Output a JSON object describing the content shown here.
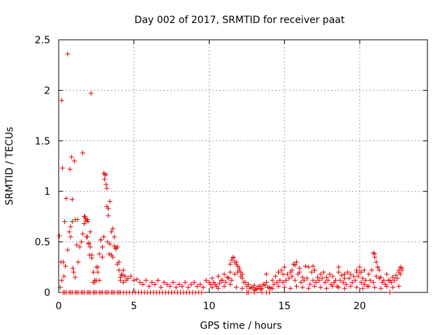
{
  "chart_data": {
    "type": "scatter",
    "title": "Day 002 of 2017, SRMTID for receiver paat",
    "xlabel": "GPS time / hours",
    "ylabel": "SRMTID / TECUs",
    "xlim": [
      0,
      24.5
    ],
    "ylim": [
      0,
      2.5
    ],
    "xticks": [
      0,
      5,
      10,
      15,
      20
    ],
    "yticks": [
      0,
      0.5,
      1,
      1.5,
      2,
      2.5
    ],
    "xtick_labels": [
      "0",
      "5",
      "10",
      "15",
      "20"
    ],
    "ytick_labels": [
      "0",
      "0.5",
      "1",
      "1.5",
      "2",
      "2.5"
    ],
    "grid": true,
    "marker": "+",
    "series": [
      {
        "name": "SRMTID",
        "color": "#e00000",
        "x": [
          0.1,
          0.2,
          0.3,
          0.4,
          0.5,
          0.6,
          0.7,
          0.8,
          0.9,
          1.0,
          1.1,
          1.2,
          1.3,
          1.4,
          1.5,
          1.6,
          1.7,
          1.8,
          1.9,
          2.0,
          2.1,
          2.2,
          2.3,
          2.4,
          2.5,
          2.6,
          2.7,
          2.8,
          2.9,
          3.0,
          3.1,
          3.2,
          3.3,
          3.4,
          3.5,
          3.6,
          3.7,
          3.8,
          3.9,
          4.0,
          4.1,
          4.2,
          4.3,
          4.4,
          4.5,
          0.05,
          0.15,
          0.2,
          0.25,
          0.35,
          0.45,
          0.6,
          0.75,
          0.8,
          0.85,
          0.9,
          0.95,
          1.05,
          1.1,
          1.25,
          1.6,
          1.7,
          1.75,
          1.8,
          1.85,
          1.9,
          1.95,
          2.0,
          2.05,
          2.1,
          2.15,
          2.2,
          2.3,
          2.4,
          2.5,
          2.6,
          2.7,
          2.8,
          2.9,
          3.0,
          3.05,
          3.1,
          3.15,
          3.2,
          3.25,
          3.3,
          3.35,
          3.4,
          3.5,
          3.6,
          3.7,
          3.8,
          3.9,
          4.0,
          4.1,
          4.2,
          4.3,
          0.3,
          0.5,
          0.7,
          0.9,
          1.1,
          1.3,
          1.5,
          1.7,
          1.9,
          2.1,
          2.3,
          2.5,
          2.7,
          2.9,
          3.1,
          3.3,
          3.5,
          3.7,
          3.9,
          4.1,
          4.3,
          4.5,
          4.7,
          4.9,
          5.1,
          5.3,
          5.5,
          5.7,
          5.9,
          6.1,
          6.3,
          6.5,
          6.7,
          6.9,
          7.1,
          7.3,
          7.5,
          7.7,
          7.9,
          8.1,
          8.3,
          8.5,
          8.7,
          8.9,
          9.1,
          9.3,
          9.5,
          4.6,
          4.8,
          5.0,
          5.2,
          5.4,
          5.6,
          5.8,
          6.0,
          6.2,
          6.4,
          6.6,
          6.8,
          7.0,
          7.2,
          7.4,
          7.6,
          7.8,
          8.0,
          8.2,
          8.4,
          8.6,
          8.8,
          9.0,
          9.2,
          9.4,
          9.6,
          9.8,
          10.0,
          10.2,
          10.4,
          10.6,
          10.8,
          11.0,
          11.2,
          11.4,
          11.6,
          11.8,
          12.0,
          12.2,
          12.4,
          12.6,
          12.8,
          13.0,
          13.2,
          13.4,
          13.6,
          13.8,
          14.0,
          14.2,
          14.4,
          14.6,
          14.8,
          15.0,
          15.2,
          15.4,
          15.6,
          15.8,
          16.0,
          16.2,
          16.4,
          16.6,
          16.8,
          17.0,
          17.2,
          17.4,
          17.6,
          17.8,
          18.0,
          18.2,
          18.4,
          18.6,
          18.8,
          19.0,
          19.2,
          19.4,
          19.6,
          19.8,
          20.0,
          20.2,
          20.4,
          20.6,
          20.8,
          21.0,
          21.2,
          21.4,
          21.6,
          21.8,
          22.0,
          22.2,
          22.4,
          22.6,
          22.8,
          10.1,
          10.3,
          10.5,
          10.7,
          10.9,
          11.1,
          11.3,
          11.5,
          11.7,
          11.9,
          12.1,
          12.3,
          12.5,
          12.7,
          12.9,
          13.1,
          13.3,
          13.5,
          13.7,
          13.9,
          14.1,
          14.3,
          14.5,
          14.7,
          14.9,
          15.1,
          15.3,
          15.5,
          15.7,
          15.9,
          16.1,
          16.3,
          16.5,
          16.7,
          16.9,
          17.1,
          17.3,
          17.5,
          17.7,
          17.9,
          18.1,
          18.3,
          18.5,
          18.7,
          18.9,
          19.1,
          19.3,
          19.5,
          19.7,
          19.9,
          20.1,
          20.3,
          20.5,
          20.7,
          20.9,
          21.1,
          21.3,
          21.5,
          21.7,
          21.9,
          22.1,
          22.3,
          22.5,
          22.7,
          11.5,
          11.6,
          11.7,
          11.8,
          11.9,
          12.0,
          12.1,
          15.7,
          15.8,
          16.0,
          16.9,
          17.0,
          18.6,
          20.0,
          20.3,
          20.9,
          21.0,
          21.1,
          21.2,
          22.7,
          22.8,
          11.4,
          12.2,
          13.8,
          14.6,
          14.9,
          15.5,
          19.0,
          19.8,
          20.1,
          21.3,
          22.6,
          10.2,
          10.6,
          11.0,
          11.4,
          11.8,
          12.2,
          12.6,
          13.0,
          13.4,
          13.8,
          14.2,
          14.6,
          15.0,
          15.4,
          15.8,
          16.2,
          16.6,
          17.0,
          17.4,
          17.8,
          18.2,
          18.6,
          19.0,
          19.4,
          19.8,
          20.2,
          20.6,
          21.0,
          21.4,
          21.8,
          22.2,
          22.6,
          0.4,
          0.8,
          1.2,
          1.6,
          2.0,
          2.4,
          2.8,
          3.2,
          3.6,
          4.0,
          5.5,
          6.5,
          7.5,
          8.5,
          12.5,
          13.0,
          13.5,
          14.0,
          22.0
        ],
        "y": [
          0.05,
          0.12,
          0.3,
          0.7,
          0.93,
          0.42,
          0.6,
          0.55,
          0.7,
          0.2,
          0.72,
          0.47,
          0.3,
          0.45,
          0.5,
          0.58,
          0.75,
          0.73,
          0.55,
          0.49,
          0.6,
          0.37,
          0.2,
          0.1,
          0.12,
          0.25,
          0.38,
          0.52,
          0.35,
          0.55,
          1.17,
          1.03,
          0.83,
          0.48,
          0.37,
          0.63,
          0.55,
          0.44,
          0.45,
          0.3,
          0.15,
          0.17,
          0.22,
          0.16,
          0.12,
          0.56,
          0.3,
          1.9,
          1.23,
          0.16,
          0.26,
          2.36,
          1.22,
          0.65,
          1.34,
          0.92,
          0.24,
          1.3,
          0.15,
          0.72,
          1.38,
          0.68,
          0.75,
          0.71,
          0.55,
          0.72,
          0.7,
          0.48,
          0.37,
          0.45,
          1.97,
          0.34,
          0.1,
          0.12,
          0.25,
          0.2,
          0.12,
          0.52,
          0.45,
          1.18,
          1.12,
          1.16,
          1.07,
          0.85,
          0.5,
          0.76,
          0.38,
          0.9,
          0.6,
          0.35,
          0.46,
          0.43,
          0.28,
          0.22,
          0.12,
          0.18,
          0.1,
          0.0,
          0.0,
          0.0,
          0.0,
          0.0,
          0.0,
          0.0,
          0.0,
          0.0,
          0.0,
          0.0,
          0.0,
          0.0,
          0.0,
          0.0,
          0.0,
          0.0,
          0.0,
          0.0,
          0.0,
          0.0,
          0.0,
          0.0,
          0.0,
          0.0,
          0.0,
          0.0,
          0.0,
          0.0,
          0.0,
          0.0,
          0.0,
          0.0,
          0.0,
          0.0,
          0.0,
          0.0,
          0.0,
          0.0,
          0.0,
          0.0,
          0.0,
          0.0,
          0.0,
          0.0,
          0.0,
          0.0,
          0.14,
          0.16,
          0.12,
          0.13,
          0.1,
          0.08,
          0.12,
          0.06,
          0.1,
          0.08,
          0.12,
          0.05,
          0.1,
          0.08,
          0.06,
          0.1,
          0.05,
          0.08,
          0.06,
          0.1,
          0.05,
          0.08,
          0.1,
          0.06,
          0.08,
          0.05,
          0.12,
          0.1,
          0.14,
          0.08,
          0.16,
          0.12,
          0.18,
          0.15,
          0.28,
          0.35,
          0.3,
          0.22,
          0.14,
          0.1,
          0.08,
          0.05,
          0.07,
          0.04,
          0.06,
          0.08,
          0.1,
          0.05,
          0.12,
          0.16,
          0.2,
          0.22,
          0.25,
          0.18,
          0.2,
          0.28,
          0.3,
          0.2,
          0.15,
          0.26,
          0.25,
          0.2,
          0.22,
          0.15,
          0.18,
          0.2,
          0.15,
          0.18,
          0.16,
          0.12,
          0.2,
          0.17,
          0.14,
          0.2,
          0.18,
          0.16,
          0.22,
          0.2,
          0.14,
          0.12,
          0.18,
          0.22,
          0.38,
          0.25,
          0.15,
          0.12,
          0.18,
          0.12,
          0.15,
          0.17,
          0.2,
          0.24,
          0.08,
          0.1,
          0.06,
          0.09,
          0.12,
          0.1,
          0.14,
          0.12,
          0.18,
          0.2,
          0.16,
          0.1,
          0.06,
          0.04,
          0.05,
          0.03,
          0.06,
          0.04,
          0.07,
          0.05,
          0.04,
          0.08,
          0.1,
          0.12,
          0.1,
          0.12,
          0.14,
          0.16,
          0.12,
          0.18,
          0.1,
          0.12,
          0.14,
          0.08,
          0.12,
          0.1,
          0.12,
          0.14,
          0.1,
          0.12,
          0.08,
          0.1,
          0.06,
          0.12,
          0.1,
          0.08,
          0.14,
          0.1,
          0.12,
          0.16,
          0.1,
          0.08,
          0.06,
          0.12,
          0.1,
          0.16,
          0.14,
          0.1,
          0.08,
          0.12,
          0.1,
          0.12,
          0.14,
          0.18,
          0.32,
          0.34,
          0.3,
          0.28,
          0.26,
          0.24,
          0.2,
          0.27,
          0.3,
          0.24,
          0.26,
          0.22,
          0.25,
          0.25,
          0.22,
          0.39,
          0.35,
          0.3,
          0.25,
          0.25,
          0.22,
          0.2,
          0.18,
          0.18,
          0.2,
          0.18,
          0.22,
          0.18,
          0.2,
          0.2,
          0.22,
          0.22,
          0.05,
          0.04,
          0.06,
          0.08,
          0.05,
          0.04,
          0.0,
          0.02,
          0.03,
          0.0,
          0.04,
          0.06,
          0.05,
          0.04,
          0.06,
          0.05,
          0.04,
          0.06,
          0.05,
          0.04,
          0.06,
          0.05,
          0.04,
          0.06,
          0.05,
          0.04,
          0.06,
          0.05,
          0.04,
          0.06,
          0.05,
          0.06,
          0.0,
          0.0,
          0.0,
          0.0,
          0.0,
          0.0,
          0.0,
          0.0,
          0.0,
          0.0,
          0.0,
          0.0,
          0.0,
          0.0,
          0.0,
          0.0,
          0.0,
          0.0,
          0.0
        ]
      }
    ]
  }
}
